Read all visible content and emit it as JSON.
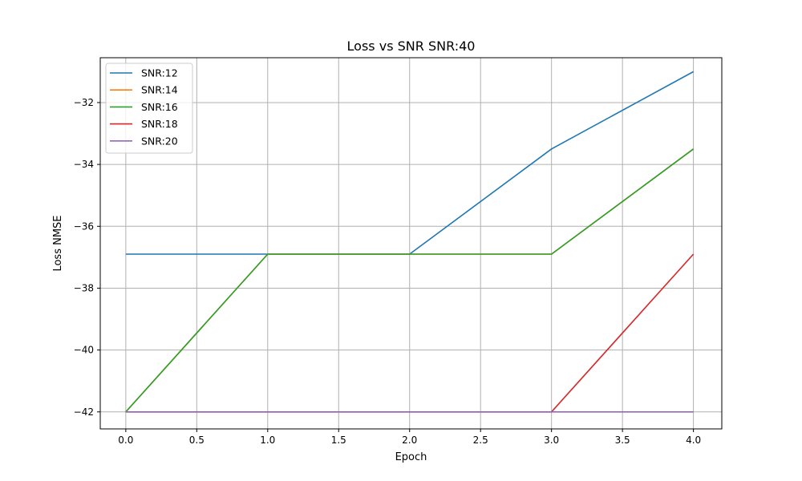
{
  "chart_data": {
    "type": "line",
    "title": "Loss vs SNR SNR:40",
    "xlabel": "Epoch",
    "ylabel": "Loss NMSE",
    "x": [
      0,
      1,
      2,
      3,
      4
    ],
    "xlim": [
      -0.18,
      4.2
    ],
    "ylim": [
      -42.55,
      -30.55
    ],
    "xticks": [
      0.0,
      0.5,
      1.0,
      1.5,
      2.0,
      2.5,
      3.0,
      3.5,
      4.0
    ],
    "xtick_labels": [
      "0.0",
      "0.5",
      "1.0",
      "1.5",
      "2.0",
      "2.5",
      "3.0",
      "3.5",
      "4.0"
    ],
    "yticks": [
      -42,
      -40,
      -38,
      -36,
      -34,
      -32
    ],
    "ytick_labels": [
      "−42",
      "−40",
      "−38",
      "−36",
      "−34",
      "−32"
    ],
    "grid": true,
    "legend_position": "top-left",
    "series": [
      {
        "name": "SNR:12",
        "color": "#1f77b4",
        "values": [
          -36.9,
          -36.9,
          -36.9,
          -33.5,
          -31.0
        ]
      },
      {
        "name": "SNR:14",
        "color": "#ff7f0e",
        "values": [
          -42.0,
          -36.9,
          -36.9,
          -36.9,
          -33.5
        ]
      },
      {
        "name": "SNR:16",
        "color": "#2ca02c",
        "values": [
          -42.0,
          -36.9,
          -36.9,
          -36.9,
          -33.5
        ]
      },
      {
        "name": "SNR:18",
        "color": "#d62728",
        "values": [
          -42.0,
          -42.0,
          -42.0,
          -42.0,
          -36.9
        ]
      },
      {
        "name": "SNR:20",
        "color": "#9467bd",
        "values": [
          -42.0,
          -42.0,
          -42.0,
          -42.0,
          -42.0
        ]
      }
    ]
  }
}
